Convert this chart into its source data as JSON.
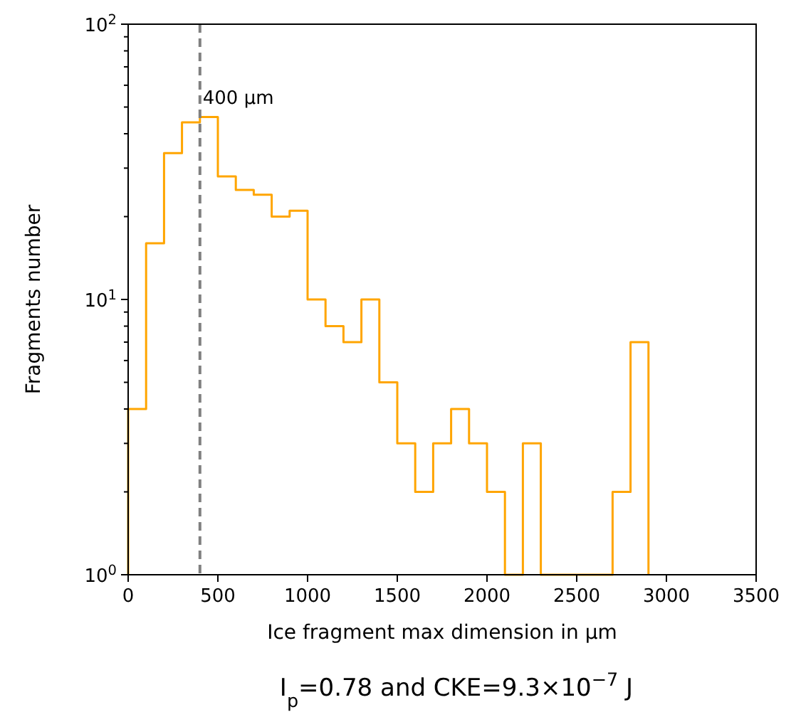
{
  "chart_data": {
    "type": "histogram",
    "xlabel": "Ice fragment max dimension in µm",
    "ylabel": "Fragments number",
    "bins": [
      0,
      100,
      200,
      300,
      400,
      500,
      600,
      700,
      800,
      900,
      1000,
      1100,
      1200,
      1300,
      1400,
      1500,
      1600,
      1700,
      1800,
      1900,
      2000,
      2100,
      2200,
      2300,
      2400,
      2500,
      2600,
      2700,
      2800,
      2900
    ],
    "values": [
      4,
      16,
      34,
      44,
      46,
      28,
      25,
      24,
      20,
      21,
      10,
      8,
      7,
      10,
      5,
      3,
      2,
      3,
      4,
      3,
      2,
      null,
      3,
      null,
      null,
      null,
      null,
      2,
      7
    ],
    "color": "#ffa500",
    "log": "y",
    "xlim": [
      0,
      3500
    ],
    "xticks": [
      0,
      500,
      1000,
      1500,
      2000,
      2500,
      3000,
      3500
    ],
    "ylim": [
      1,
      100
    ],
    "yticks": [
      {
        "value": 1,
        "label": "10$^{0}$"
      },
      {
        "value": 2,
        "label": null
      },
      {
        "value": 3,
        "label": null
      },
      {
        "value": 4,
        "label": null
      },
      {
        "value": 5,
        "label": null
      },
      {
        "value": 6,
        "label": null
      },
      {
        "value": 7,
        "label": null
      },
      {
        "value": 8,
        "label": null
      },
      {
        "value": 9,
        "label": null
      },
      {
        "value": 10,
        "label": "10$^{1}$"
      },
      {
        "value": 20,
        "label": null
      },
      {
        "value": 30,
        "label": null
      },
      {
        "value": 40,
        "label": null
      },
      {
        "value": 50,
        "label": null
      },
      {
        "value": 60,
        "label": null
      },
      {
        "value": 70,
        "label": null
      },
      {
        "value": 80,
        "label": null
      },
      {
        "value": 90,
        "label": null
      },
      {
        "value": 100,
        "label": "10$^{2}$"
      }
    ],
    "ref_lines": [
      {
        "axis": "x",
        "value": 400,
        "label": "400 µm",
        "color": "#808080",
        "line_style": "dashed"
      }
    ],
    "annotations": [
      "I$_{p}$=0.78 and CKE=9.3×10$^{−7}$ J"
    ]
  }
}
